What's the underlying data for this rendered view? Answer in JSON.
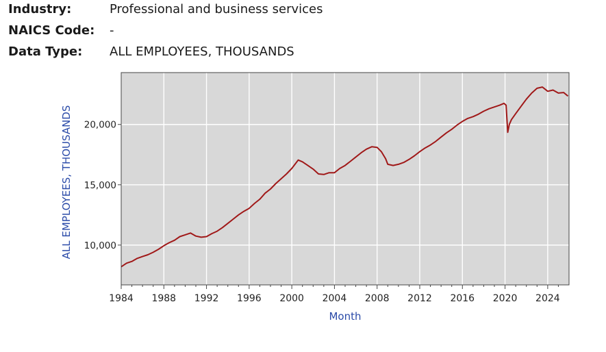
{
  "meta": {
    "industry_label": "Industry:",
    "industry_value": "Professional and business services",
    "naics_label": "NAICS Code:",
    "naics_value": "-",
    "datatype_label": "Data Type:",
    "datatype_value": "ALL EMPLOYEES, THOUSANDS"
  },
  "chart_data": {
    "type": "line",
    "xlabel": "Month",
    "ylabel": "ALL EMPLOYEES, THOUSANDS",
    "xlim": [
      1984,
      2026
    ],
    "ylim": [
      6700,
      24300
    ],
    "x_ticks": [
      1984,
      1988,
      1992,
      1996,
      2000,
      2004,
      2008,
      2012,
      2016,
      2020,
      2024
    ],
    "y_ticks": [
      10000,
      15000,
      20000
    ],
    "y_tick_labels": [
      "10,000",
      "15,000",
      "20,000"
    ],
    "grid": true,
    "background_color": "#d8d8d8",
    "line_color": "#a01818",
    "series": [
      {
        "x": [
          1984,
          1984.5,
          1985,
          1985.5,
          1986,
          1986.5,
          1987,
          1987.5,
          1988,
          1988.5,
          1989,
          1989.5,
          1990,
          1990.5,
          1991,
          1991.5,
          1992,
          1992.5,
          1993,
          1993.5,
          1994,
          1994.5,
          1995,
          1995.5,
          1996,
          1996.5,
          1997,
          1997.5,
          1998,
          1998.5,
          1999,
          1999.5,
          2000,
          2000.3,
          2000.6,
          2001,
          2001.5,
          2002,
          2002.5,
          2003,
          2003.5,
          2004,
          2004.5,
          2005,
          2005.5,
          2006,
          2006.5,
          2007,
          2007.5,
          2008,
          2008.4,
          2008.8,
          2009,
          2009.5,
          2010,
          2010.5,
          2011,
          2011.5,
          2012,
          2012.5,
          2013,
          2013.5,
          2014,
          2014.5,
          2015,
          2015.5,
          2016,
          2016.5,
          2017,
          2017.5,
          2018,
          2018.5,
          2019,
          2019.5,
          2019.9,
          2020.1,
          2020.25,
          2020.4,
          2020.6,
          2021,
          2021.5,
          2022,
          2022.5,
          2023,
          2023.5,
          2024,
          2024.5,
          2025,
          2025.5,
          2025.9
        ],
        "values": [
          8200,
          8500,
          8650,
          8900,
          9050,
          9200,
          9400,
          9650,
          9950,
          10200,
          10400,
          10700,
          10850,
          11000,
          10750,
          10650,
          10700,
          10950,
          11150,
          11450,
          11800,
          12150,
          12500,
          12800,
          13050,
          13450,
          13800,
          14300,
          14650,
          15100,
          15500,
          15900,
          16350,
          16700,
          17050,
          16900,
          16600,
          16300,
          15900,
          15850,
          16000,
          16000,
          16350,
          16600,
          16950,
          17300,
          17650,
          17950,
          18150,
          18100,
          17750,
          17150,
          16700,
          16600,
          16700,
          16850,
          17100,
          17400,
          17750,
          18050,
          18300,
          18600,
          18950,
          19300,
          19600,
          19950,
          20250,
          20500,
          20650,
          20850,
          21100,
          21300,
          21450,
          21600,
          21750,
          21600,
          19350,
          20000,
          20400,
          20900,
          21500,
          22100,
          22600,
          23000,
          23100,
          22750,
          22850,
          22600,
          22650,
          22350
        ]
      }
    ]
  }
}
